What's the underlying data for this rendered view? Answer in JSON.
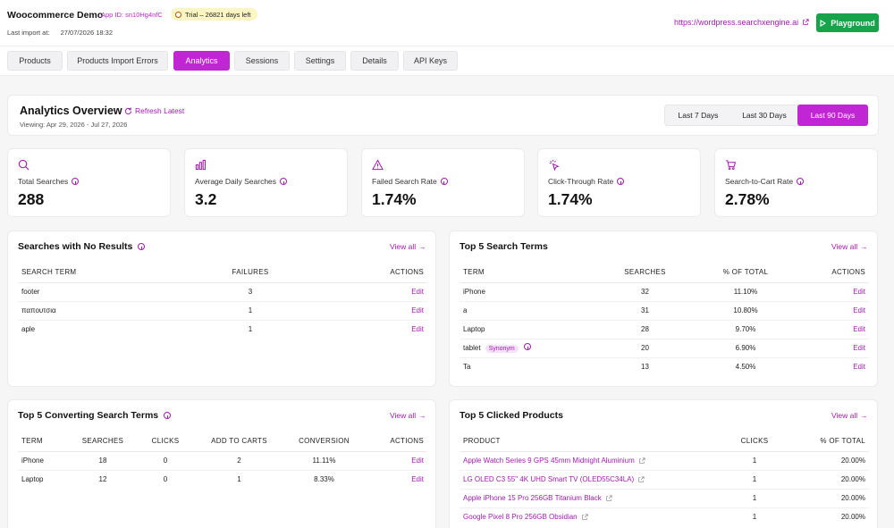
{
  "header": {
    "store_name": "Woocommerce Demo",
    "app_id": "App ID: sn10Hg4nfC",
    "trial": "Trial – 26821 days left",
    "last_import_label": "Last import at:",
    "last_import_value": "27/07/2026 18:32",
    "site_url": "https://wordpress.searchxengine.ai",
    "playground_label": "Playground"
  },
  "tabs": [
    {
      "label": "Products",
      "active": false
    },
    {
      "label": "Products Import Errors",
      "active": false
    },
    {
      "label": "Analytics",
      "active": true
    },
    {
      "label": "Sessions",
      "active": false
    },
    {
      "label": "Settings",
      "active": false
    },
    {
      "label": "Details",
      "active": false
    },
    {
      "label": "API Keys",
      "active": false
    }
  ],
  "overview": {
    "title": "Analytics Overview",
    "refresh_label": "Refresh Latest",
    "viewing": "Viewing: Apr 29, 2026 - Jul 27, 2026",
    "ranges": [
      "Last 7 Days",
      "Last 30 Days",
      "Last 90 Days"
    ],
    "active_range": "Last 90 Days"
  },
  "stats": [
    {
      "label": "Total Searches",
      "value": "288",
      "icon": "search-icon"
    },
    {
      "label": "Average Daily Searches",
      "value": "3.2",
      "icon": "bar-chart-icon"
    },
    {
      "label": "Failed Search Rate",
      "value": "1.74%",
      "icon": "warning-icon"
    },
    {
      "label": "Click-Through Rate",
      "value": "1.74%",
      "icon": "click-icon"
    },
    {
      "label": "Search-to-Cart Rate",
      "value": "2.78%",
      "icon": "cart-icon"
    }
  ],
  "no_results": {
    "title": "Searches with No Results",
    "view_all": "View all",
    "headers": [
      "SEARCH TERM",
      "FAILURES",
      "ACTIONS"
    ],
    "rows": [
      {
        "term": "footer",
        "failures": "3",
        "action": "Edit"
      },
      {
        "term": "παπουτσια",
        "failures": "1",
        "action": "Edit"
      },
      {
        "term": "aple",
        "failures": "1",
        "action": "Edit"
      }
    ]
  },
  "top_terms": {
    "title": "Top 5 Search Terms",
    "view_all": "View all",
    "headers": [
      "TERM",
      "SEARCHES",
      "% OF TOTAL",
      "ACTIONS"
    ],
    "rows": [
      {
        "term": "iPhone",
        "searches": "32",
        "pct": "11.10%",
        "action": "Edit",
        "badge": ""
      },
      {
        "term": "a",
        "searches": "31",
        "pct": "10.80%",
        "action": "Edit",
        "badge": ""
      },
      {
        "term": "Laptop",
        "searches": "28",
        "pct": "9.70%",
        "action": "Edit",
        "badge": ""
      },
      {
        "term": "tablet",
        "searches": "20",
        "pct": "6.90%",
        "action": "Edit",
        "badge": "Synonym"
      },
      {
        "term": "Ta",
        "searches": "13",
        "pct": "4.50%",
        "action": "Edit",
        "badge": ""
      }
    ]
  },
  "converting": {
    "title": "Top 5 Converting Search Terms",
    "view_all": "View all",
    "headers": [
      "TERM",
      "SEARCHES",
      "CLICKS",
      "ADD TO CARTS",
      "CONVERSION",
      "ACTIONS"
    ],
    "rows": [
      {
        "term": "iPhone",
        "searches": "18",
        "clicks": "0",
        "carts": "2",
        "conversion": "11.11%",
        "action": "Edit"
      },
      {
        "term": "Laptop",
        "searches": "12",
        "clicks": "0",
        "carts": "1",
        "conversion": "8.33%",
        "action": "Edit"
      }
    ]
  },
  "clicked": {
    "title": "Top 5 Clicked Products",
    "view_all": "View all",
    "headers": [
      "PRODUCT",
      "CLICKS",
      "% OF TOTAL"
    ],
    "rows": [
      {
        "product": "Apple Watch Series 9 GPS 45mm Midnight Aluminium",
        "clicks": "1",
        "pct": "20.00%"
      },
      {
        "product": "LG OLED C3 55\" 4K UHD Smart TV (OLED55C34LA)",
        "clicks": "1",
        "pct": "20.00%"
      },
      {
        "product": "Apple iPhone 15 Pro 256GB Titanium Black",
        "clicks": "1",
        "pct": "20.00%"
      },
      {
        "product": "Google Pixel 8 Pro 256GB Obsidian",
        "clicks": "1",
        "pct": "20.00%"
      }
    ]
  },
  "colors": {
    "accent": "#c026d3",
    "accent_text": "#a21caf",
    "success": "#16a34a",
    "trial_bg": "#fdf6c3"
  }
}
